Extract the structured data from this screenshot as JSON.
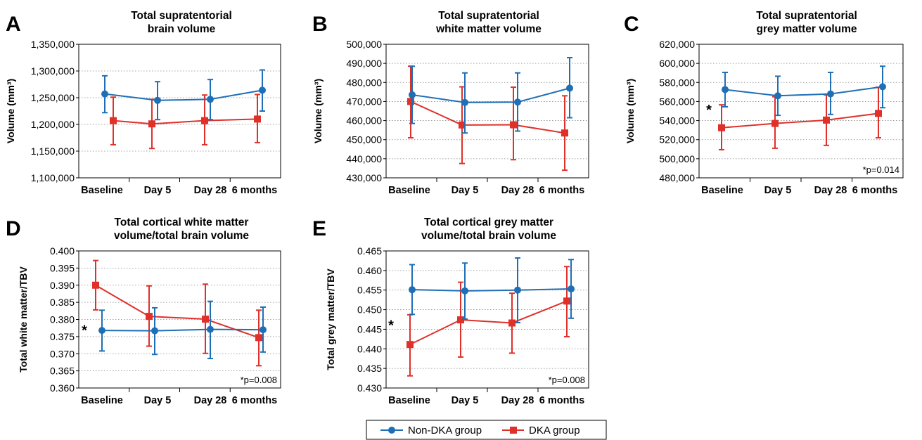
{
  "legend": [
    {
      "name": "Non-DKA group",
      "color": "#1f6fb6",
      "marker": "circle"
    },
    {
      "name": "DKA group",
      "color": "#e0302a",
      "marker": "square"
    }
  ],
  "chart_data": [
    {
      "panel": "A",
      "type": "line",
      "title": [
        "Total supratentorial",
        "brain volume"
      ],
      "ylabel": "Volume (mm³)",
      "categories": [
        "Baseline",
        "Day 5",
        "Day 28",
        "6 months"
      ],
      "ylim": [
        1100000,
        1350000
      ],
      "yticks": [
        1100000,
        1150000,
        1200000,
        1250000,
        1300000,
        1350000
      ],
      "ytick_labels": [
        "1,100,000",
        "1,150,000",
        "1,200,000",
        "1,250,000",
        "1,300,000",
        "1,350,000"
      ],
      "series": [
        {
          "name": "Non-DKA group",
          "values": [
            1257000,
            1245000,
            1247000,
            1264000
          ],
          "err_low": [
            1222000,
            1209000,
            1209000,
            1225000
          ],
          "err_high": [
            1291000,
            1280000,
            1284000,
            1302000
          ]
        },
        {
          "name": "DKA group",
          "values": [
            1207000,
            1201000,
            1207000,
            1210000
          ],
          "err_low": [
            1162000,
            1155000,
            1162000,
            1166000
          ],
          "err_high": [
            1251000,
            1247000,
            1255000,
            1256000
          ]
        }
      ],
      "annotation": "",
      "star": false
    },
    {
      "panel": "B",
      "type": "line",
      "title": [
        "Total supratentorial",
        "white matter volume"
      ],
      "ylabel": "Volume (mm³)",
      "categories": [
        "Baseline",
        "Day 5",
        "Day 28",
        "6 months"
      ],
      "ylim": [
        430000,
        500000
      ],
      "yticks": [
        430000,
        440000,
        450000,
        460000,
        470000,
        480000,
        490000,
        500000
      ],
      "ytick_labels": [
        "430,000",
        "440,000",
        "450,000",
        "460,000",
        "470,000",
        "480,000",
        "490,000",
        "500,000"
      ],
      "series": [
        {
          "name": "Non-DKA group",
          "values": [
            473500,
            469500,
            469700,
            477000
          ],
          "err_low": [
            458500,
            453500,
            454500,
            461500
          ],
          "err_high": [
            488500,
            485000,
            485000,
            493000
          ]
        },
        {
          "name": "DKA group",
          "values": [
            470000,
            457700,
            457800,
            453500
          ],
          "err_low": [
            451000,
            437500,
            439500,
            434000
          ],
          "err_high": [
            488500,
            477700,
            477500,
            473000
          ]
        }
      ],
      "annotation": "",
      "star": false
    },
    {
      "panel": "C",
      "type": "line",
      "title": [
        "Total supratentorial",
        "grey matter volume"
      ],
      "ylabel": "Volume (mm³)",
      "categories": [
        "Baseline",
        "Day 5",
        "Day 28",
        "6 months"
      ],
      "ylim": [
        480000,
        620000
      ],
      "yticks": [
        480000,
        500000,
        520000,
        540000,
        560000,
        580000,
        600000,
        620000
      ],
      "ytick_labels": [
        "480,000",
        "500,000",
        "520,000",
        "540,000",
        "560,000",
        "580,000",
        "600,000",
        "620,000"
      ],
      "series": [
        {
          "name": "Non-DKA group",
          "values": [
            572500,
            566000,
            568000,
            575500
          ],
          "err_low": [
            554500,
            545500,
            546500,
            553500
          ],
          "err_high": [
            590500,
            586500,
            590500,
            597000
          ]
        },
        {
          "name": "DKA group",
          "values": [
            532500,
            537000,
            540500,
            547500
          ],
          "err_low": [
            509500,
            511000,
            514000,
            522000
          ],
          "err_high": [
            556500,
            565000,
            567000,
            575000
          ]
        }
      ],
      "annotation": "*p=0.014",
      "star": true
    },
    {
      "panel": "D",
      "type": "line",
      "title": [
        "Total cortical white matter",
        "volume/total brain volume"
      ],
      "ylabel": "Total white matter/TBV",
      "categories": [
        "Baseline",
        "Day 5",
        "Day 28",
        "6 months"
      ],
      "ylim": [
        0.36,
        0.4
      ],
      "yticks": [
        0.36,
        0.365,
        0.37,
        0.375,
        0.38,
        0.385,
        0.39,
        0.395,
        0.4
      ],
      "ytick_labels": [
        "0.360",
        "0.365",
        "0.370",
        "0.375",
        "0.380",
        "0.385",
        "0.390",
        "0.395",
        "0.400"
      ],
      "series": [
        {
          "name": "Non-DKA group",
          "values": [
            0.3768,
            0.3767,
            0.3771,
            0.377
          ],
          "err_low": [
            0.3708,
            0.3698,
            0.3686,
            0.3705
          ],
          "err_high": [
            0.3827,
            0.3834,
            0.3853,
            0.3836
          ]
        },
        {
          "name": "DKA group",
          "values": [
            0.39,
            0.3809,
            0.3801,
            0.3747
          ],
          "err_low": [
            0.3828,
            0.3722,
            0.3701,
            0.3665
          ],
          "err_high": [
            0.3972,
            0.3898,
            0.3903,
            0.3827
          ]
        }
      ],
      "annotation": "*p=0.008",
      "star": true
    },
    {
      "panel": "E",
      "type": "line",
      "title": [
        "Total cortical grey matter",
        "volume/total brain volume"
      ],
      "ylabel": "Total grey matter/TBV",
      "categories": [
        "Baseline",
        "Day 5",
        "Day 28",
        "6 months"
      ],
      "ylim": [
        0.43,
        0.465
      ],
      "yticks": [
        0.43,
        0.435,
        0.44,
        0.445,
        0.45,
        0.455,
        0.46,
        0.465
      ],
      "ytick_labels": [
        "0.430",
        "0.435",
        "0.440",
        "0.445",
        "0.450",
        "0.455",
        "0.460",
        "0.465"
      ],
      "series": [
        {
          "name": "Non-DKA group",
          "values": [
            0.4551,
            0.4548,
            0.455,
            0.4553
          ],
          "err_low": [
            0.4488,
            0.4476,
            0.4467,
            0.4478
          ],
          "err_high": [
            0.4615,
            0.4619,
            0.4632,
            0.4628
          ]
        },
        {
          "name": "DKA group",
          "values": [
            0.4411,
            0.4474,
            0.4466,
            0.4522
          ],
          "err_low": [
            0.4331,
            0.4379,
            0.4389,
            0.4431
          ],
          "err_high": [
            0.4487,
            0.457,
            0.4542,
            0.461
          ]
        }
      ],
      "annotation": "*p=0.008",
      "star": true
    }
  ]
}
